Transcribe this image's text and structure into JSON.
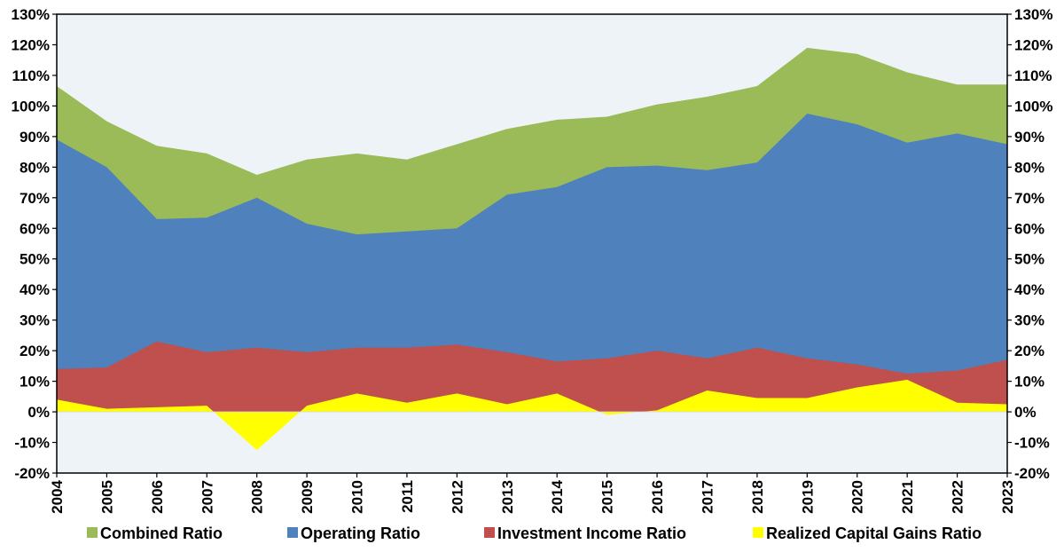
{
  "chart_data": {
    "type": "area",
    "title": "",
    "xlabel": "",
    "ylabel": "",
    "categories": [
      "2004",
      "2005",
      "2006",
      "2007",
      "2008",
      "2009",
      "2010",
      "2011",
      "2012",
      "2013",
      "2014",
      "2015",
      "2016",
      "2017",
      "2018",
      "2019",
      "2020",
      "2021",
      "2022",
      "2023"
    ],
    "ylim": [
      -20,
      130
    ],
    "ytick_step": 10,
    "ytick_format": "{v}%",
    "secondary_y_axis": true,
    "grid": false,
    "legend_position": "bottom",
    "plot_background": "#EEF3F8",
    "series": [
      {
        "name": "Combined Ratio",
        "color": "#9BBB59",
        "values": [
          106.5,
          95,
          87,
          84.5,
          77.5,
          82.5,
          84.5,
          82.5,
          87.5,
          92.5,
          95.5,
          96.5,
          100.5,
          103,
          106.5,
          119,
          117,
          111,
          107,
          107
        ]
      },
      {
        "name": "Operating Ratio",
        "color": "#4F81BD",
        "values": [
          89,
          80,
          63,
          63.5,
          70,
          61.5,
          58,
          59,
          60,
          71,
          73.5,
          80,
          80.5,
          79,
          81.5,
          97.5,
          94,
          88,
          91,
          87.5
        ]
      },
      {
        "name": "Investment Income Ratio",
        "color": "#C0504D",
        "values": [
          14,
          14.5,
          23,
          19.5,
          21,
          19.5,
          21,
          21,
          22,
          19.5,
          16.5,
          17.5,
          20,
          17.5,
          21,
          17.5,
          15.5,
          12.5,
          13.5,
          17
        ]
      },
      {
        "name": "Realized Capital Gains Ratio",
        "color": "#FFFF00",
        "values": [
          4,
          1,
          1.5,
          2,
          -12.5,
          2,
          6,
          3,
          6,
          2.5,
          6,
          -1,
          0.5,
          7,
          4.5,
          4.5,
          8,
          10.5,
          3,
          2.5
        ]
      }
    ]
  }
}
